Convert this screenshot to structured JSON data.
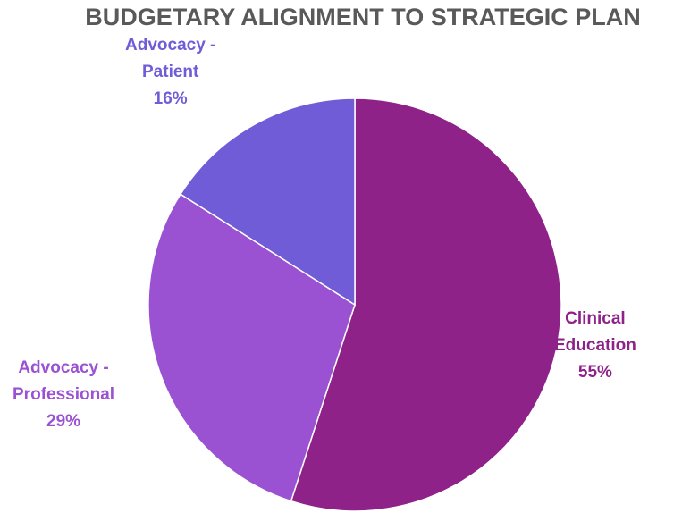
{
  "chart_data": {
    "type": "pie",
    "title": "BUDGETARY ALIGNMENT TO STRATEGIC PLAN",
    "slices": [
      {
        "name": "Clinical Education",
        "label_lines": [
          "Clinical",
          "Education"
        ],
        "value": 55,
        "value_label": "55%",
        "color": "#8e2289",
        "label_color": "#8e2289"
      },
      {
        "name": "Advocacy - Professional",
        "label_lines": [
          "Advocacy  -",
          "Professional"
        ],
        "value": 29,
        "value_label": "29%",
        "color": "#9b52d2",
        "label_color": "#9b52d2"
      },
      {
        "name": "Advocacy - Patient",
        "label_lines": [
          "Advocacy  -",
          "Patient"
        ],
        "value": 16,
        "value_label": "16%",
        "color": "#715cd8",
        "label_color": "#715cd8"
      }
    ],
    "start_angle_deg": 0,
    "direction": "clockwise",
    "legend": "none",
    "data_labels": "outside"
  }
}
